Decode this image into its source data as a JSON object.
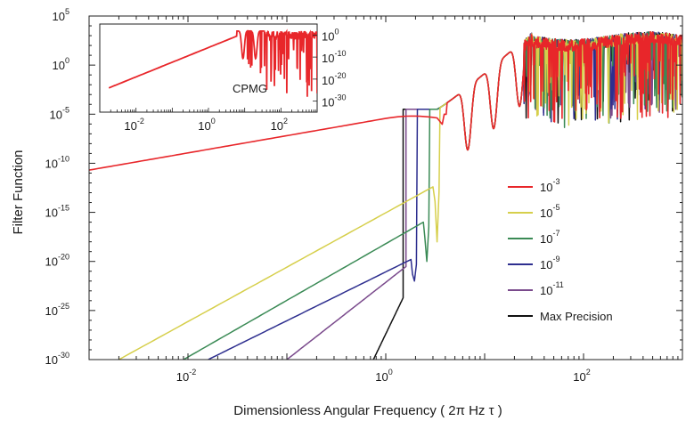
{
  "chart_data": {
    "type": "line",
    "xlabel": "Dimensionless Angular Frequency ( 2π Hz τ )",
    "ylabel": "Filter Function",
    "x_scale": "log",
    "y_scale": "log",
    "xlim": [
      0.001,
      1000
    ],
    "ylim": [
      1e-30,
      100000.0
    ],
    "x_ticks": [
      {
        "base": "10",
        "exp": "-2",
        "value": 0.01
      },
      {
        "base": "10",
        "exp": "0",
        "value": 1
      },
      {
        "base": "10",
        "exp": "2",
        "value": 100
      }
    ],
    "y_ticks": [
      {
        "base": "10",
        "exp": "5",
        "value": 100000.0
      },
      {
        "base": "10",
        "exp": "0",
        "value": 1
      },
      {
        "base": "10",
        "exp": "-5",
        "value": 1e-05
      },
      {
        "base": "10",
        "exp": "-10",
        "value": 1e-10
      },
      {
        "base": "10",
        "exp": "-15",
        "value": 1e-15
      },
      {
        "base": "10",
        "exp": "-20",
        "value": 1e-20
      },
      {
        "base": "10",
        "exp": "-25",
        "value": 1e-25
      },
      {
        "base": "10",
        "exp": "-30",
        "value": 1e-30
      }
    ],
    "grid": false,
    "legend_position": "center-right",
    "series": [
      {
        "name_base": "10",
        "name_exp": "-3",
        "color": "#e8262a",
        "start_x": 0.001,
        "start_y": 2e-11,
        "peak_x": 3.3,
        "peak_y": 3e-05,
        "dip_x": 3.9
      },
      {
        "name_base": "10",
        "name_exp": "-5",
        "color": "#d6cf4b",
        "start_x": 0.002,
        "start_y": 1e-30,
        "peak_x": 3.0,
        "peak_y": 4e-13,
        "dip_x": 3.3
      },
      {
        "name_base": "10",
        "name_exp": "-7",
        "color": "#3a8a55",
        "start_x": 0.009,
        "start_y": 1e-30,
        "peak_x": 2.4,
        "peak_y": 1e-16,
        "dip_x": 2.6
      },
      {
        "name_base": "10",
        "name_exp": "-9",
        "color": "#2e2f8f",
        "start_x": 0.016,
        "start_y": 1e-30,
        "peak_x": 1.8,
        "peak_y": 1.6e-20,
        "dip_x": 1.95
      },
      {
        "name_base": "10",
        "name_exp": "-11",
        "color": "#7a4a8c",
        "start_x": 0.1,
        "start_y": 1e-30,
        "peak_x": 1.6,
        "peak_y": 3e-21,
        "dip_x": 0
      },
      {
        "name": "Max Precision",
        "color": "#111111",
        "start_x": 0.75,
        "start_y": 1e-30,
        "peak_x": 1.5,
        "peak_y": 2e-24,
        "dip_x": 0
      }
    ],
    "inset": {
      "label": "CPMG",
      "x_ticks": [
        {
          "base": "10",
          "exp": "-2",
          "value": 0.01
        },
        {
          "base": "10",
          "exp": "0",
          "value": 1
        },
        {
          "base": "10",
          "exp": "2",
          "value": 100
        }
      ],
      "y_ticks_left": [
        {
          "base": "10",
          "exp": "5",
          "value": 100000.0
        },
        {
          "base": "10",
          "exp": "0",
          "value": 1
        },
        {
          "base": "10",
          "exp": "-5",
          "value": 1e-05
        }
      ],
      "y_ticks_right": [
        {
          "base": "10",
          "exp": "0",
          "value": 1
        },
        {
          "base": "10",
          "exp": "-10",
          "value": 1e-10
        },
        {
          "base": "10",
          "exp": "-20",
          "value": 1e-20
        },
        {
          "base": "10",
          "exp": "-30",
          "value": 1e-30
        }
      ],
      "xlim": [
        0.001,
        1000
      ],
      "ylim_right": [
        1e-35,
        100000.0
      ],
      "color": "#e8262a"
    }
  }
}
